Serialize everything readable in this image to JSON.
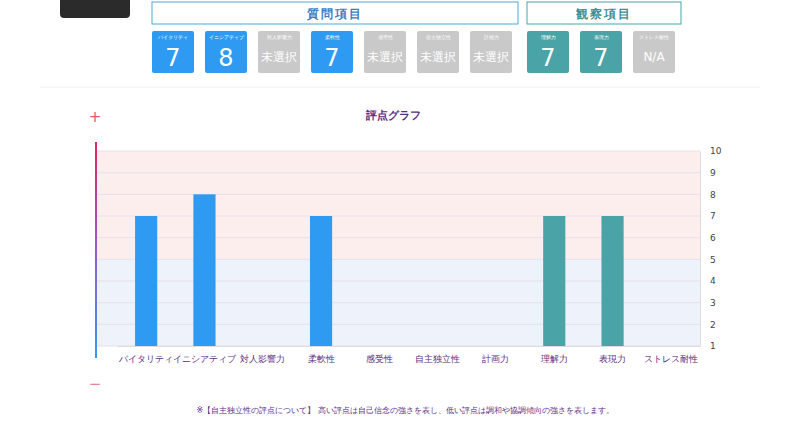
{
  "groups": [
    {
      "title": "質問項目",
      "cards": [
        {
          "label": "バイタリティ",
          "value": 7
        },
        {
          "label": "イニシアティブ",
          "value": 8
        },
        {
          "label": "対人影響力",
          "value": "未選択"
        },
        {
          "label": "柔軟性",
          "value": 7
        },
        {
          "label": "感受性",
          "value": "未選択"
        },
        {
          "label": "自主独立性",
          "value": "未選択"
        },
        {
          "label": "計画力",
          "value": "未選択"
        }
      ]
    },
    {
      "title": "観察項目",
      "cards": [
        {
          "label": "理解力",
          "value": 7
        },
        {
          "label": "表現力",
          "value": 7
        },
        {
          "label": "ストレス耐性",
          "value": "N/A"
        }
      ]
    }
  ],
  "chart_data": {
    "type": "bar",
    "title": "評点グラフ",
    "categories": [
      "バイタリティ",
      "イニシアティブ",
      "対人影響力",
      "柔軟性",
      "感受性",
      "自主独立性",
      "計画力",
      "理解力",
      "表現力",
      "ストレス耐性"
    ],
    "values": [
      7,
      8,
      null,
      7,
      null,
      null,
      null,
      7,
      7,
      null
    ],
    "colors": [
      "#2f9af2",
      "#2f9af2",
      "#2f9af2",
      "#2f9af2",
      "#2f9af2",
      "#2f9af2",
      "#2f9af2",
      "#4aa3a6",
      "#4aa3a6",
      "#4aa3a6"
    ],
    "ylim": [
      1,
      10
    ],
    "yticks": [
      1,
      2,
      3,
      4,
      5,
      6,
      7,
      8,
      9,
      10
    ],
    "grid": true,
    "bands": [
      {
        "from": 5,
        "to": 10
      },
      {
        "from": 1,
        "to": 5
      }
    ],
    "annotations": [
      "+",
      "−"
    ]
  },
  "note": "※【自主独立性の評点について】 高い評点は自己信念の強さを表し、低い評点は調和や協調傾向の強さを表します。"
}
